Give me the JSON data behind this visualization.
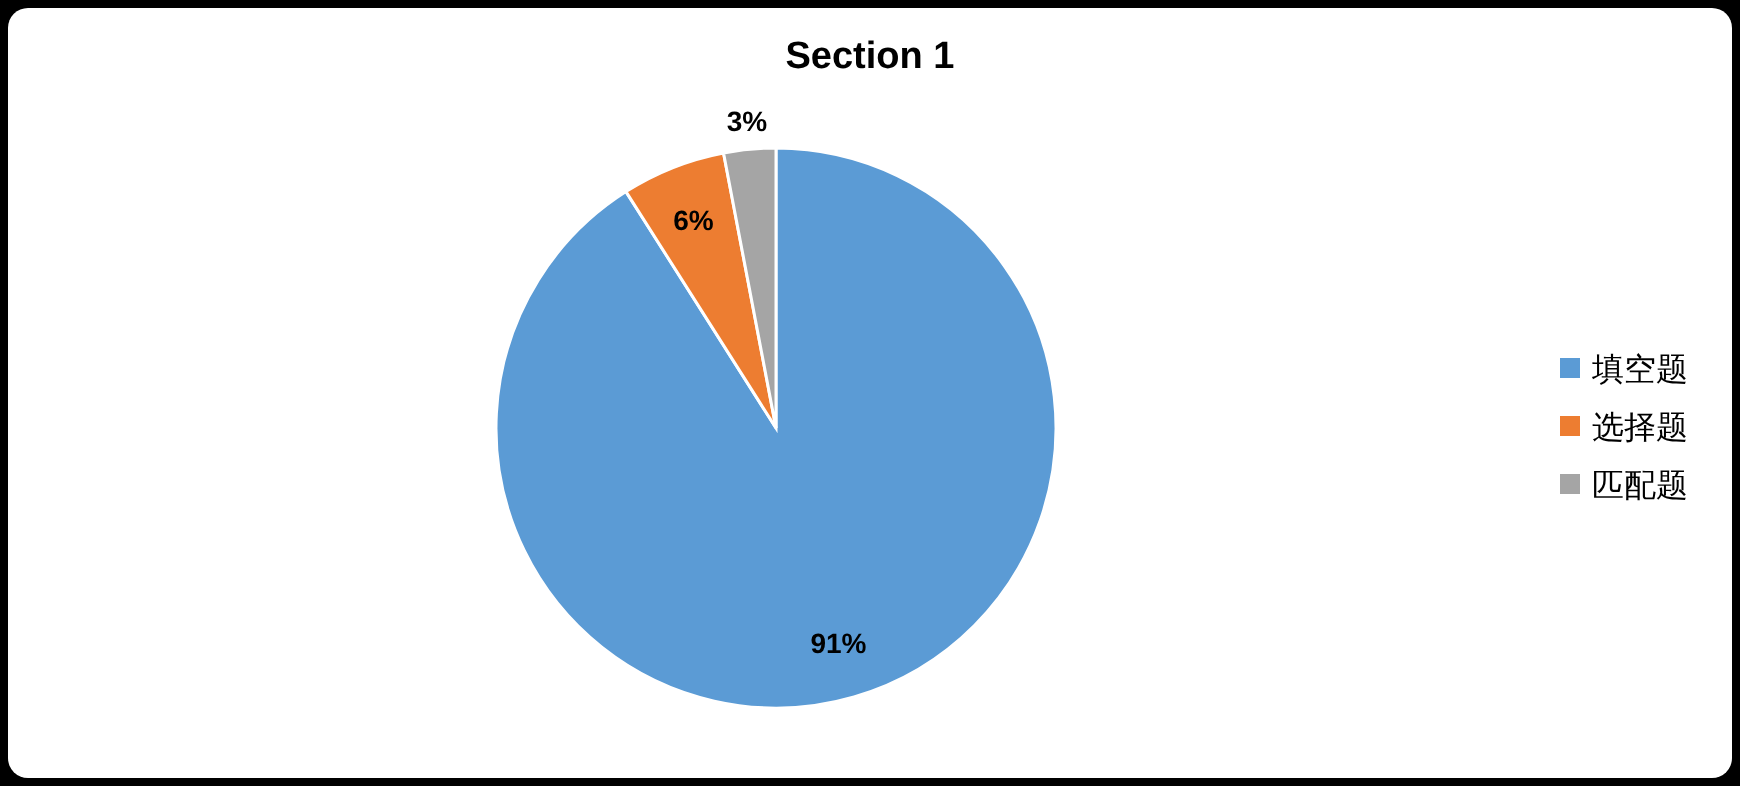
{
  "chart_data": {
    "type": "pie",
    "title": "Section 1",
    "categories": [
      "填空题",
      "选择题",
      "匹配题"
    ],
    "values": [
      91,
      6,
      3
    ],
    "colors": [
      "#5b9bd5",
      "#ed7d31",
      "#a5a5a5"
    ],
    "value_labels": [
      "91%",
      "6%",
      "3%"
    ],
    "legend": "right"
  }
}
